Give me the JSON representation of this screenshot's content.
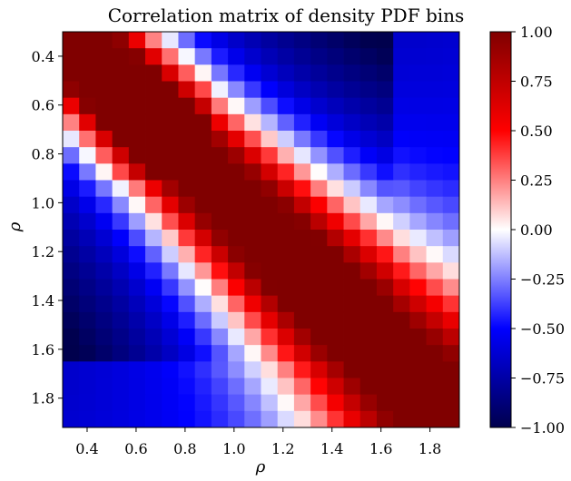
{
  "chart_data": {
    "type": "heatmap",
    "title": "Correlation matrix of density PDF bins",
    "xlabel": "ρ",
    "ylabel": "ρ",
    "x_range": [
      0.3,
      1.92
    ],
    "y_range": [
      0.3,
      1.92
    ],
    "y_inverted": true,
    "n_bins": 24,
    "bin_width": 0.0675,
    "x_ticks": [
      "0.4",
      "0.6",
      "0.8",
      "1.0",
      "1.2",
      "1.4",
      "1.6",
      "1.8"
    ],
    "y_ticks": [
      "0.4",
      "0.6",
      "0.8",
      "1.0",
      "1.2",
      "1.4",
      "1.6",
      "1.8"
    ],
    "colorbar": {
      "min": -1.0,
      "max": 1.0,
      "colormap": "seismic",
      "ticks": [
        "1.00",
        "0.75",
        "0.50",
        "0.25",
        "0.00",
        "−0.25",
        "−0.50",
        "−0.75",
        "−1.00"
      ]
    },
    "structure": {
      "diagonal_value": 1.0,
      "near_diagonal": "positive correlation band",
      "off_diagonal_low_high": "strong negative correlation",
      "corner_low_low": "positive correlation"
    }
  },
  "colors": {
    "min": "#00004c",
    "mid": "#ffffff",
    "max": "#7f0000"
  }
}
